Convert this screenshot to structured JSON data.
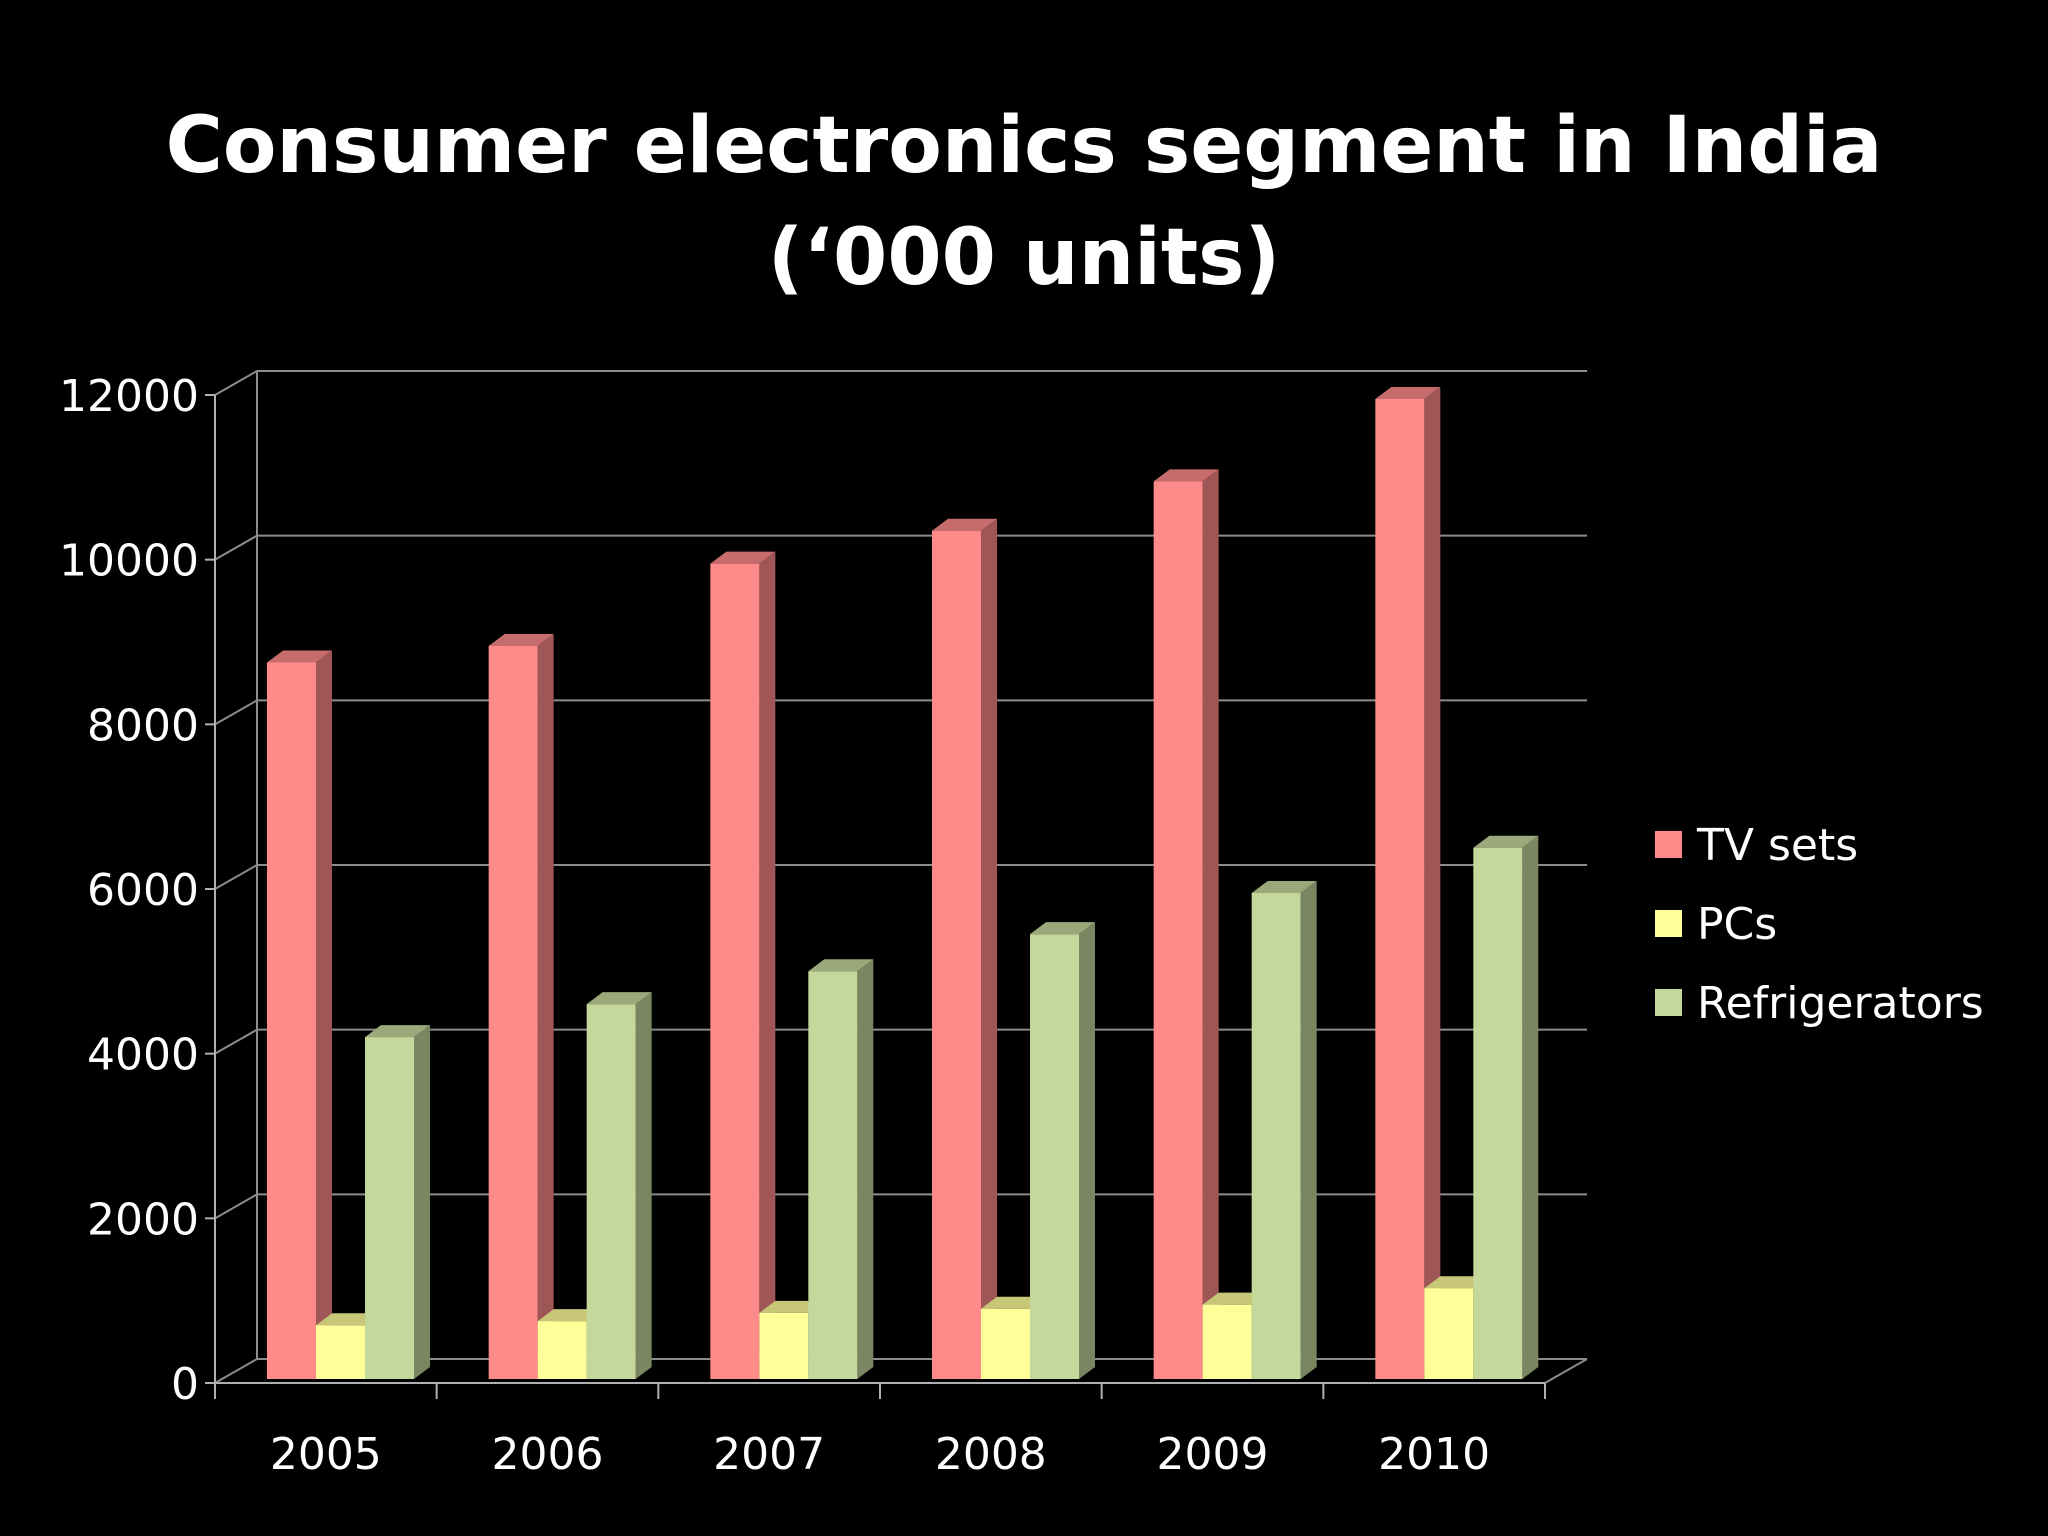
{
  "slide": {
    "title_line1": "Consumer electronics segment in India",
    "title_line2": "(‘000 units)"
  },
  "chart_data": {
    "type": "bar",
    "title": "Consumer electronics segment in India (‘000 units)",
    "xlabel": "",
    "ylabel": "",
    "categories": [
      "2005",
      "2006",
      "2007",
      "2008",
      "2009",
      "2010"
    ],
    "series": [
      {
        "name": "TV sets",
        "values": [
          8800,
          9000,
          10000,
          10400,
          11000,
          12000
        ],
        "color": "#ff8a8a"
      },
      {
        "name": "PCs",
        "values": [
          750,
          800,
          900,
          950,
          1000,
          1200
        ],
        "color": "#ffff99"
      },
      {
        "name": "Refrigerators",
        "values": [
          4250,
          4650,
          5050,
          5500,
          6000,
          6550
        ],
        "color": "#c5d89c"
      }
    ],
    "ylim": [
      0,
      12000
    ],
    "yticks": [
      "0",
      "2000",
      "4000",
      "6000",
      "8000",
      "10000",
      "12000"
    ],
    "grid": true,
    "legend_position": "right",
    "style": "3d-clustered-column"
  }
}
